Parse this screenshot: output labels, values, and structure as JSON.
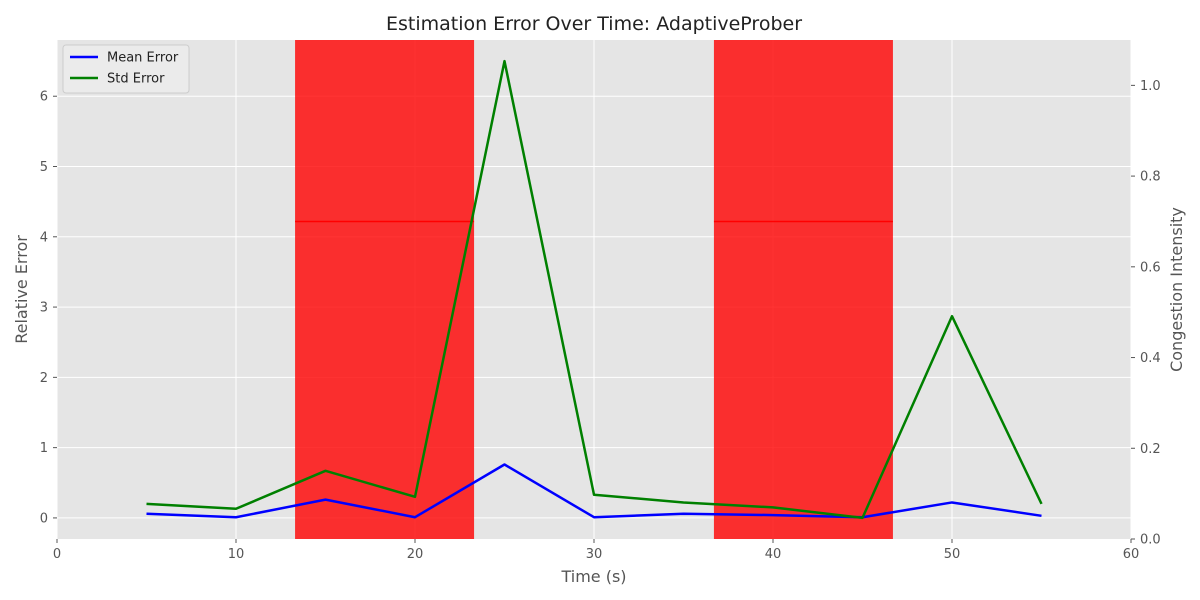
{
  "chart_data": {
    "type": "line",
    "title": "Estimation Error Over Time: AdaptiveProber",
    "xlabel": "Time (s)",
    "ylabel": "Relative Error",
    "y2label": "Congestion Intensity",
    "xlim": [
      0,
      60
    ],
    "ylim": [
      -0.3,
      6.8
    ],
    "y2lim": [
      0,
      1.1
    ],
    "x_ticks": [
      0,
      10,
      20,
      30,
      40,
      50,
      60
    ],
    "y_ticks": [
      0,
      1,
      2,
      3,
      4,
      5,
      6
    ],
    "y2_ticks": [
      0.0,
      0.2,
      0.4,
      0.6,
      0.8,
      1.0
    ],
    "grid": true,
    "legend_position": "top-left",
    "x": [
      5,
      10,
      15,
      20,
      25,
      30,
      35,
      40,
      45,
      50,
      55
    ],
    "series": [
      {
        "name": "Mean Error",
        "color": "#0000ff",
        "axis": "left",
        "values": [
          0.06,
          0.01,
          0.26,
          0.01,
          0.76,
          0.01,
          0.06,
          0.04,
          0.01,
          0.22,
          0.03
        ]
      },
      {
        "name": "Std Error",
        "color": "#008000",
        "axis": "left",
        "values": [
          0.2,
          0.13,
          0.67,
          0.3,
          6.5,
          0.33,
          0.22,
          0.15,
          0.0,
          2.87,
          0.2
        ]
      }
    ],
    "congestion_periods": [
      {
        "start": 13.3,
        "end": 23.3,
        "intensity": 0.7,
        "color": "#ff0000"
      },
      {
        "start": 36.7,
        "end": 46.7,
        "intensity": 0.7,
        "color": "#ff0000"
      }
    ]
  }
}
